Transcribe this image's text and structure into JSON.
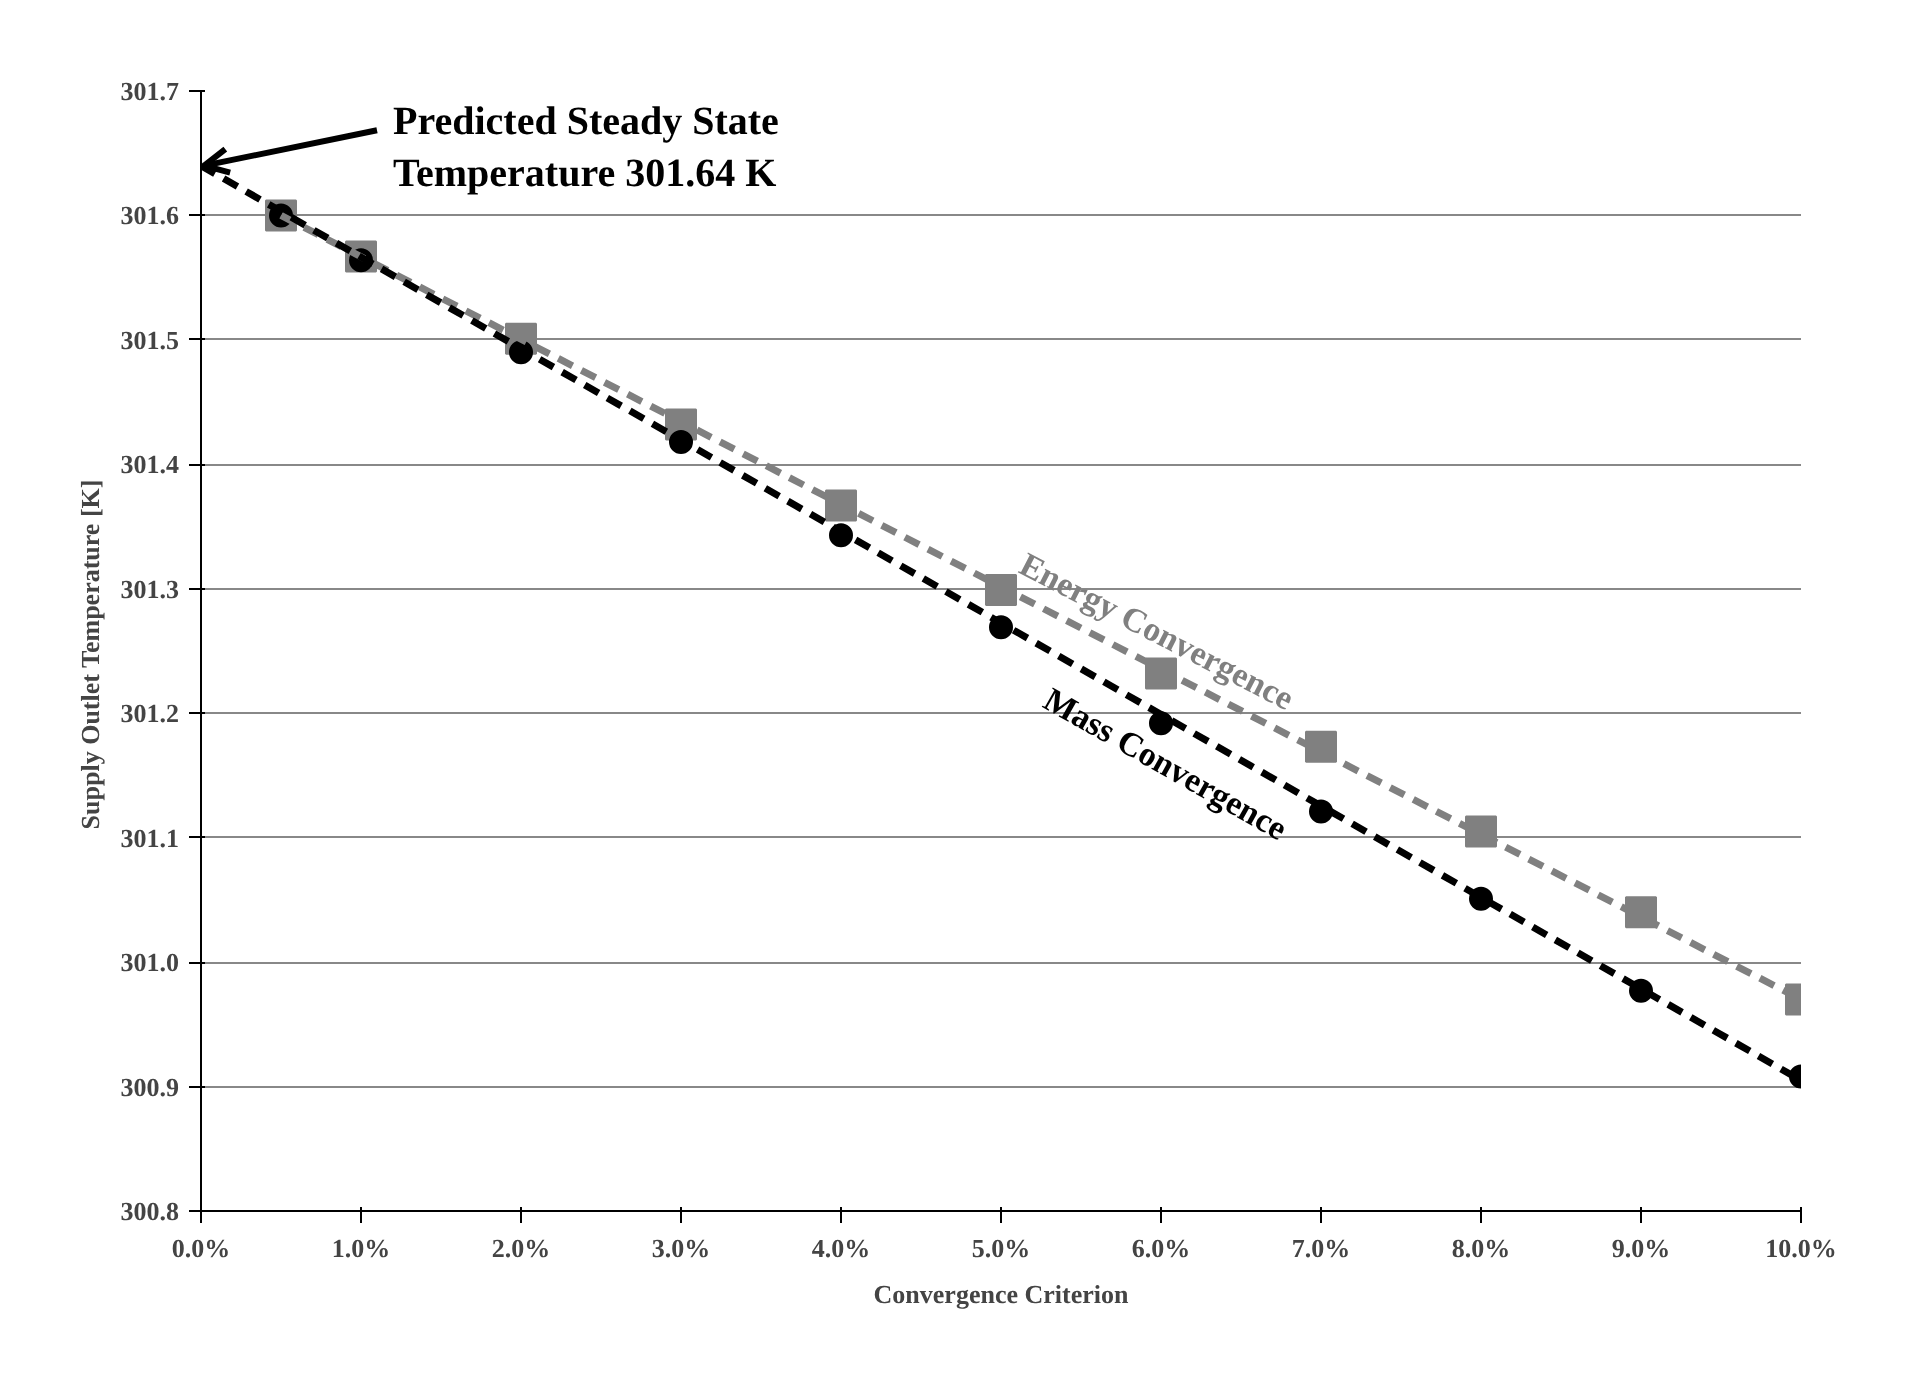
{
  "chart_data": {
    "type": "scatter",
    "xlabel": "Convergence Criterion",
    "ylabel": "Supply Outlet Temperature  [K]",
    "x": [
      0.5,
      1,
      2,
      3,
      4,
      5,
      6,
      7,
      8,
      9,
      10
    ],
    "series": [
      {
        "name": "Energy Convergence",
        "color": "#808080",
        "marker": "square",
        "values": [
          301.6,
          301.567,
          301.501,
          301.432,
          301.367,
          301.299,
          301.232,
          301.173,
          301.105,
          301.04,
          300.97
        ]
      },
      {
        "name": "Mass Convergence",
        "color": "#000000",
        "marker": "circle",
        "values": [
          301.6,
          301.564,
          301.49,
          301.418,
          301.343,
          301.269,
          301.192,
          301.121,
          301.051,
          300.977,
          300.908
        ]
      },
      {
        "type": "line",
        "color": "#808080",
        "line_style": "dashed",
        "x": [
          0.5,
          10
        ],
        "values": [
          301.6,
          300.97
        ]
      },
      {
        "type": "line",
        "color": "#000000",
        "line_style": "dashed",
        "x": [
          0,
          10
        ],
        "values": [
          301.64,
          300.905
        ]
      }
    ],
    "xlim": [
      0,
      10
    ],
    "ylim": [
      300.8,
      301.7
    ],
    "xticks": [
      {
        "value": 0,
        "label": "0.0%"
      },
      {
        "value": 1,
        "label": "1.0%"
      },
      {
        "value": 2,
        "label": "2.0%"
      },
      {
        "value": 3,
        "label": "3.0%"
      },
      {
        "value": 4,
        "label": "4.0%"
      },
      {
        "value": 5,
        "label": "5.0%"
      },
      {
        "value": 6,
        "label": "6.0%"
      },
      {
        "value": 7,
        "label": "7.0%"
      },
      {
        "value": 8,
        "label": "8.0%"
      },
      {
        "value": 9,
        "label": "9.0%"
      },
      {
        "value": 10,
        "label": "10.0%"
      }
    ],
    "yticks": [
      {
        "value": 300.8,
        "label": "300.8"
      },
      {
        "value": 300.9,
        "label": "300.9"
      },
      {
        "value": 301.0,
        "label": "301.0"
      },
      {
        "value": 301.1,
        "label": "301.1"
      },
      {
        "value": 301.2,
        "label": "301.2"
      },
      {
        "value": 301.3,
        "label": "301.3"
      },
      {
        "value": 301.4,
        "label": "301.4"
      },
      {
        "value": 301.5,
        "label": "301.5"
      },
      {
        "value": 301.6,
        "label": "301.6"
      },
      {
        "value": 301.7,
        "label": "301.7"
      }
    ],
    "grid": "y",
    "legend": false,
    "annotations": [
      {
        "text": "Predicted Steady State\nTemperature 301.64 K",
        "x": 0,
        "y": 301.64
      }
    ]
  }
}
